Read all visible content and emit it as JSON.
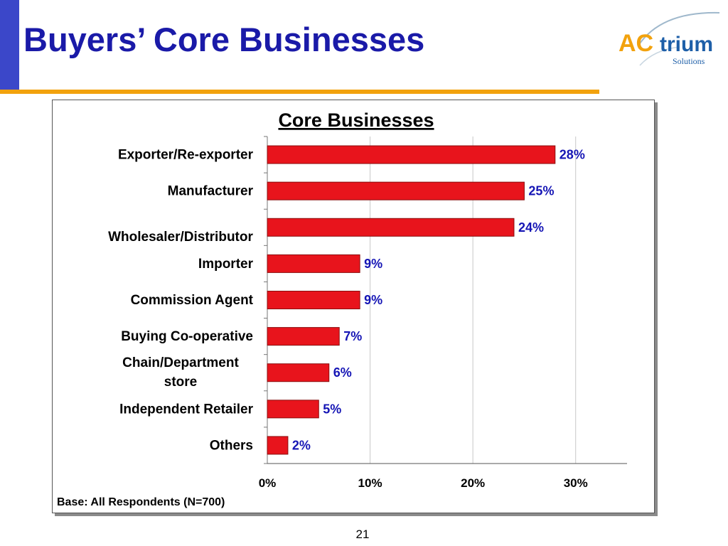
{
  "slide": {
    "title": "Buyers’ Core Businesses",
    "page_number": "21",
    "logo": {
      "text_a": "AC",
      "text_b": "trium",
      "subtext": "Solutions",
      "colors": {
        "orange": "#f2a20d",
        "blue": "#1e5fa8"
      }
    }
  },
  "colors": {
    "bar": "#e8141c",
    "bar_edge": "#8a0e0e",
    "value_label": "#1515b5",
    "title": "#1a1aa8"
  },
  "chart_data": {
    "type": "bar",
    "orientation": "horizontal",
    "title": "Core Businesses",
    "categories": [
      "Exporter/Re-exporter",
      "Manufacturer",
      "Wholesaler/Distributor",
      "Importer",
      "Commission Agent",
      "Buying Co-operative",
      "Chain/Department store",
      "Independent Retailer",
      "Others"
    ],
    "values": [
      28,
      25,
      24,
      9,
      9,
      7,
      6,
      5,
      2
    ],
    "value_labels": [
      "28%",
      "25%",
      "24%",
      "9%",
      "9%",
      "7%",
      "6%",
      "5%",
      "2%"
    ],
    "x_ticks": [
      0,
      10,
      20,
      30
    ],
    "x_tick_labels": [
      "0%",
      "10%",
      "20%",
      "30%"
    ],
    "xlim": [
      0,
      35
    ],
    "grid": true,
    "legend": "none",
    "note": "Base: All Respondents (N=700)"
  }
}
